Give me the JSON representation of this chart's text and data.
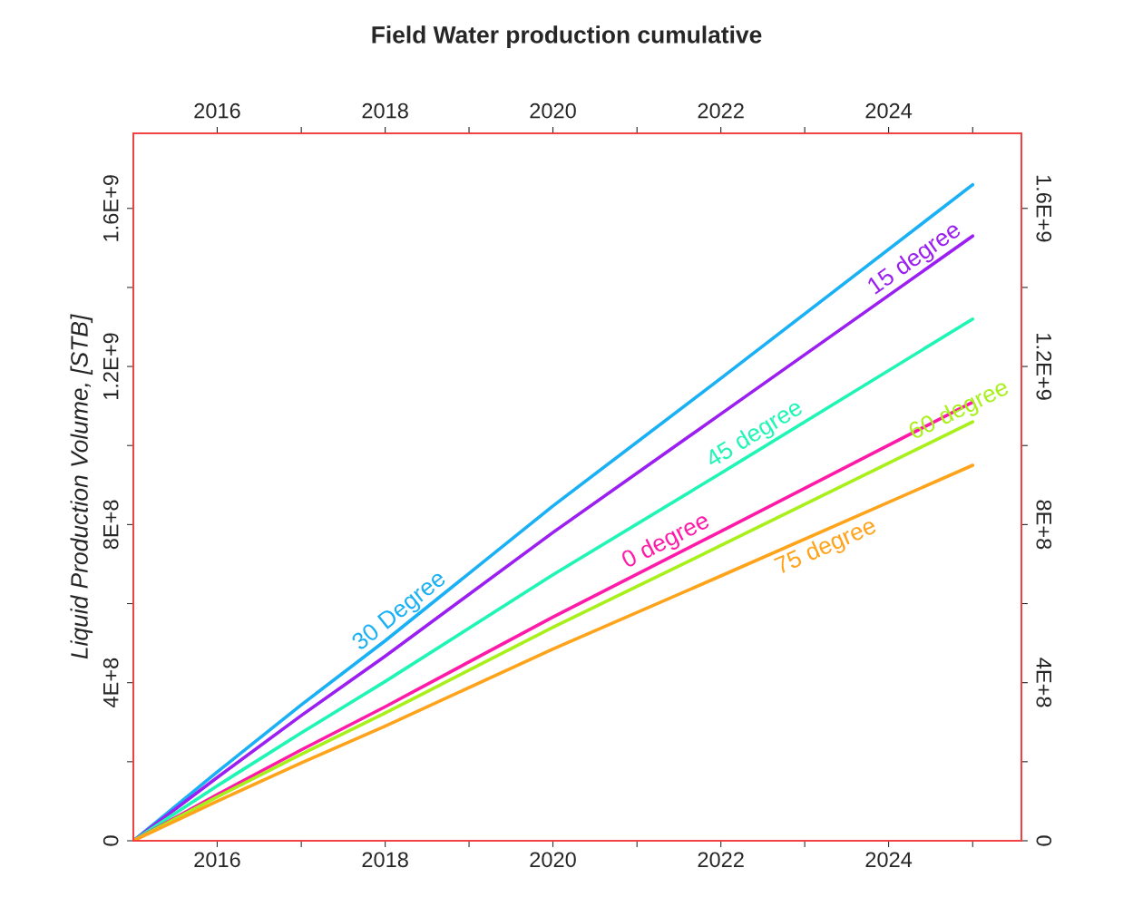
{
  "chart_data": {
    "type": "line",
    "title": "Field Water production cumulative",
    "ylabel": "Liquid Production Volume, [STB]",
    "x": [
      "2015-01-01",
      "2016-01-01",
      "2017-01-01",
      "2018-01-01",
      "2020-01-01",
      "2022-01-01",
      "2025-01-01"
    ],
    "series": [
      {
        "name": "30 Degree",
        "color": "#1ab0f5",
        "values": [
          0,
          174000000,
          344000000,
          506000000,
          847000000,
          1170000000,
          1660000000
        ]
      },
      {
        "name": "15 degree",
        "color": "#9b1ff0",
        "values": [
          0,
          160000000,
          317000000,
          467000000,
          780000000,
          1080000000,
          1530000000
        ]
      },
      {
        "name": "45 degree",
        "color": "#1ff5b4",
        "values": [
          0,
          139000000,
          273000000,
          403000000,
          673000000,
          930000000,
          1320000000
        ]
      },
      {
        "name": "0 degree",
        "color": "#ff1aa8",
        "values": [
          0,
          117000000,
          230000000,
          339000000,
          566000000,
          783000000,
          1110000000
        ]
      },
      {
        "name": "60 degree",
        "color": "#a8f01a",
        "values": [
          0,
          111000000,
          219000000,
          323000000,
          540000000,
          747000000,
          1060000000
        ]
      },
      {
        "name": "75 degree",
        "color": "#ffa31a",
        "values": [
          0,
          100000000,
          197000000,
          290000000,
          485000000,
          670000000,
          950000000
        ]
      }
    ],
    "xlim": [
      "2015-01-01",
      "2025-08-01"
    ],
    "xticks": [
      {
        "value": "2016-01-01",
        "label": "2016"
      },
      {
        "value": "2017-01-01",
        "label": null
      },
      {
        "value": "2018-01-01",
        "label": "2018"
      },
      {
        "value": "2019-01-01",
        "label": null
      },
      {
        "value": "2020-01-01",
        "label": "2020"
      },
      {
        "value": "2021-01-01",
        "label": null
      },
      {
        "value": "2022-01-01",
        "label": "2022"
      },
      {
        "value": "2023-01-01",
        "label": null
      },
      {
        "value": "2024-01-01",
        "label": "2024"
      },
      {
        "value": "2025-01-01",
        "label": null
      }
    ],
    "x2lim": [
      "2015-01-01",
      "2025-08-01"
    ],
    "x2ticks": [
      {
        "value": "2016-01-01",
        "label": "2016"
      },
      {
        "value": "2017-01-01",
        "label": null
      },
      {
        "value": "2018-01-01",
        "label": "2018"
      },
      {
        "value": "2019-01-01",
        "label": null
      },
      {
        "value": "2020-01-01",
        "label": "2020"
      },
      {
        "value": "2021-01-01",
        "label": null
      },
      {
        "value": "2022-01-01",
        "label": "2022"
      },
      {
        "value": "2023-01-01",
        "label": null
      },
      {
        "value": "2024-01-01",
        "label": "2024"
      },
      {
        "value": "2025-01-01",
        "label": null
      }
    ],
    "ylim": [
      0,
      1790000000
    ],
    "yticks": [
      0,
      {
        "value": 200000000,
        "label": null
      },
      {
        "value": 400000000,
        "label": "4E+8"
      },
      {
        "value": 600000000,
        "label": null
      },
      {
        "value": 800000000,
        "label": "8E+8"
      },
      {
        "value": 1000000000,
        "label": null
      },
      {
        "value": 1200000000,
        "label": "1.2E+9"
      },
      {
        "value": 1400000000,
        "label": null
      },
      {
        "value": 1600000000,
        "label": "1.6E+9"
      }
    ],
    "y2lim": [
      0,
      1790000000
    ],
    "y2ticks": [
      0,
      {
        "value": 200000000,
        "label": null
      },
      {
        "value": 400000000,
        "label": "4E+8"
      },
      {
        "value": 600000000,
        "label": null
      },
      {
        "value": 800000000,
        "label": "8E+8"
      },
      {
        "value": 1000000000,
        "label": null
      },
      {
        "value": 1200000000,
        "label": "1.2E+9"
      },
      {
        "value": 1400000000,
        "label": null
      },
      {
        "value": 1600000000,
        "label": "1.6E+9"
      }
    ],
    "grid": false,
    "legend": false,
    "marker": "none",
    "line_style": "solid"
  }
}
